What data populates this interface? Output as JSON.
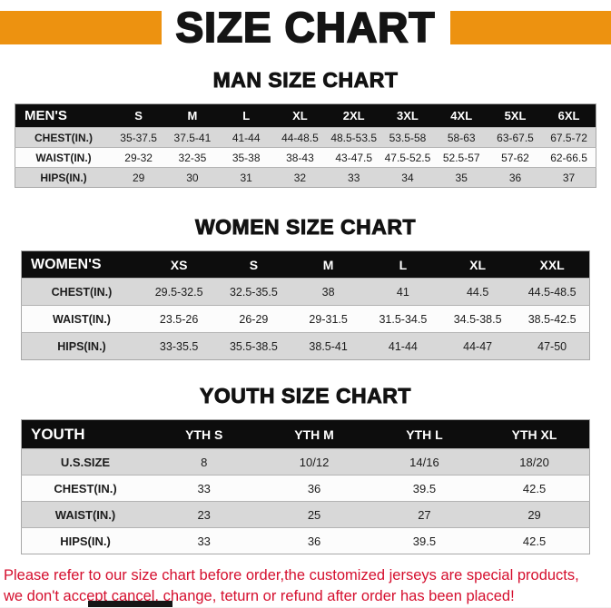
{
  "page": {
    "title": "SIZE CHART",
    "accent_color": "#ED9210",
    "table_header_bg": "#0D0D0D",
    "row_stripe_color": "#D8D8D8"
  },
  "sections": [
    {
      "heading": "MAN SIZE CHART",
      "table": {
        "header": [
          "MEN'S",
          "S",
          "M",
          "L",
          "XL",
          "2XL",
          "3XL",
          "4XL",
          "5XL",
          "6XL"
        ],
        "rows": [
          {
            "label": "CHEST(IN.)",
            "values": [
              "35-37.5",
              "37.5-41",
              "41-44",
              "44-48.5",
              "48.5-53.5",
              "53.5-58",
              "58-63",
              "63-67.5",
              "67.5-72"
            ]
          },
          {
            "label": "WAIST(IN.)",
            "values": [
              "29-32",
              "32-35",
              "35-38",
              "38-43",
              "43-47.5",
              "47.5-52.5",
              "52.5-57",
              "57-62",
              "62-66.5"
            ]
          },
          {
            "label": "HIPS(IN.)",
            "values": [
              "29",
              "30",
              "31",
              "32",
              "33",
              "34",
              "35",
              "36",
              "37"
            ]
          }
        ]
      }
    },
    {
      "heading": "WOMEN SIZE CHART",
      "table": {
        "header": [
          "WOMEN'S",
          "XS",
          "S",
          "M",
          "L",
          "XL",
          "XXL"
        ],
        "rows": [
          {
            "label": "CHEST(IN.)",
            "values": [
              "29.5-32.5",
              "32.5-35.5",
              "38",
              "41",
              "44.5",
              "44.5-48.5"
            ]
          },
          {
            "label": "WAIST(IN.)",
            "values": [
              "23.5-26",
              "26-29",
              "29-31.5",
              "31.5-34.5",
              "34.5-38.5",
              "38.5-42.5"
            ]
          },
          {
            "label": "HIPS(IN.)",
            "values": [
              "33-35.5",
              "35.5-38.5",
              "38.5-41",
              "41-44",
              "44-47",
              "47-50"
            ]
          }
        ]
      }
    },
    {
      "heading": "YOUTH SIZE CHART",
      "table": {
        "header": [
          "YOUTH",
          "YTH S",
          "YTH M",
          "YTH L",
          "YTH XL"
        ],
        "rows": [
          {
            "label": "U.S.SIZE",
            "values": [
              "8",
              "10/12",
              "14/16",
              "18/20"
            ]
          },
          {
            "label": "CHEST(IN.)",
            "values": [
              "33",
              "36",
              "39.5",
              "42.5"
            ]
          },
          {
            "label": "WAIST(IN.)",
            "values": [
              "23",
              "25",
              "27",
              "29"
            ]
          },
          {
            "label": "HIPS(IN.)",
            "values": [
              "33",
              "36",
              "39.5",
              "42.5"
            ]
          }
        ]
      }
    }
  ],
  "footer": {
    "line1": "Please refer to our size chart before order,the customized jerseys are special products,",
    "line2": "we don't accept cancel, change, teturn or refund after order has been placed!",
    "text_color": "#D50F2E"
  }
}
